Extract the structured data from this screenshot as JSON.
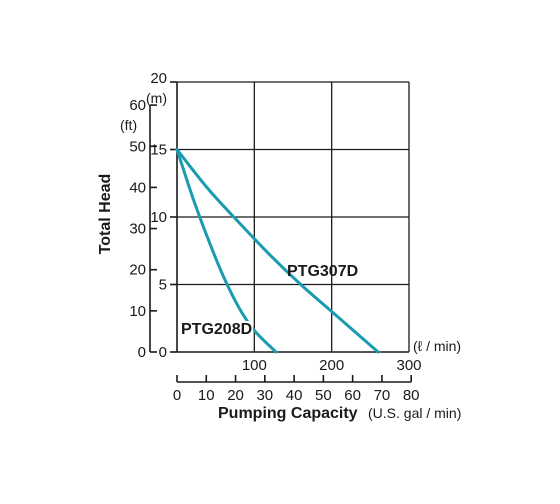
{
  "chart_data": {
    "type": "line",
    "title": "",
    "ylabel": "Total Head",
    "xlabel": "Pumping Capacity",
    "x_unit_lpm": "(ℓ / min)",
    "x_unit_gpm": "(U.S. gal / min)",
    "y_unit_m": "(m)",
    "y_unit_ft": "(ft)",
    "xlim_lpm": [
      0,
      300
    ],
    "ylim_m": [
      0,
      20
    ],
    "grid": true,
    "x_ticks_lpm": [
      "100",
      "200",
      "300"
    ],
    "x_ticks_gpm": [
      "0",
      "10",
      "20",
      "30",
      "40",
      "50",
      "60",
      "70",
      "80"
    ],
    "y_ticks_m": [
      "20",
      "15",
      "10",
      "5",
      "0"
    ],
    "y_ticks_ft": [
      "60",
      "50",
      "40",
      "30",
      "20",
      "10",
      "0"
    ],
    "colors": {
      "curve": "#1a9bb0"
    },
    "series": [
      {
        "name": "PTG208D",
        "x": [
          0,
          20,
          40,
          60,
          80,
          100,
          128
        ],
        "y": [
          15,
          11.5,
          8.4,
          5.6,
          3.3,
          1.6,
          0
        ]
      },
      {
        "name": "PTG307D",
        "x": [
          0,
          40,
          80,
          120,
          160,
          200,
          240,
          260
        ],
        "y": [
          15,
          12.1,
          9.6,
          7.2,
          5.0,
          3.0,
          1.0,
          0
        ]
      }
    ]
  }
}
